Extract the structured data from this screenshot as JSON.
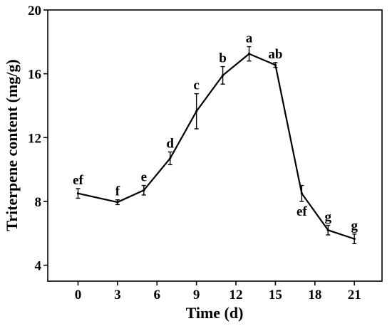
{
  "chart_data": {
    "type": "line",
    "xlabel": "Time (d)",
    "ylabel": "Triterpene content (mg/g)",
    "xlim": [
      -2.3,
      23.1
    ],
    "ylim": [
      3,
      20
    ],
    "x_ticks": [
      0,
      3,
      6,
      9,
      12,
      15,
      18,
      21
    ],
    "x_tick_labels": [
      "0",
      "3",
      "6",
      "9",
      "12",
      "15",
      "18",
      "21"
    ],
    "y_ticks": [
      4,
      8,
      12,
      16,
      20
    ],
    "y_tick_labels": [
      "4",
      "8",
      "12",
      "16",
      "20"
    ],
    "grid": false,
    "legend": "none",
    "line_color": "#000000",
    "series": [
      {
        "points": [
          {
            "x": 0,
            "y": 8.5,
            "err": 0.3,
            "label": "ef"
          },
          {
            "x": 3,
            "y": 7.95,
            "err": 0.15,
            "label": "f"
          },
          {
            "x": 5,
            "y": 8.7,
            "err": 0.3,
            "label": "e"
          },
          {
            "x": 7,
            "y": 10.7,
            "err": 0.4,
            "label": "d"
          },
          {
            "x": 9,
            "y": 13.65,
            "err": 1.1,
            "label": "c"
          },
          {
            "x": 11,
            "y": 15.9,
            "err": 0.55,
            "label": "b"
          },
          {
            "x": 13,
            "y": 17.25,
            "err": 0.45,
            "label": "a"
          },
          {
            "x": 15,
            "y": 16.55,
            "err": 0.15,
            "label": "ab"
          },
          {
            "x": 17,
            "y": 8.5,
            "err": 0.5,
            "label": "ef"
          },
          {
            "x": 19,
            "y": 6.2,
            "err": 0.3,
            "label": "g"
          },
          {
            "x": 21,
            "y": 5.65,
            "err": 0.3,
            "label": "g"
          }
        ]
      }
    ]
  }
}
